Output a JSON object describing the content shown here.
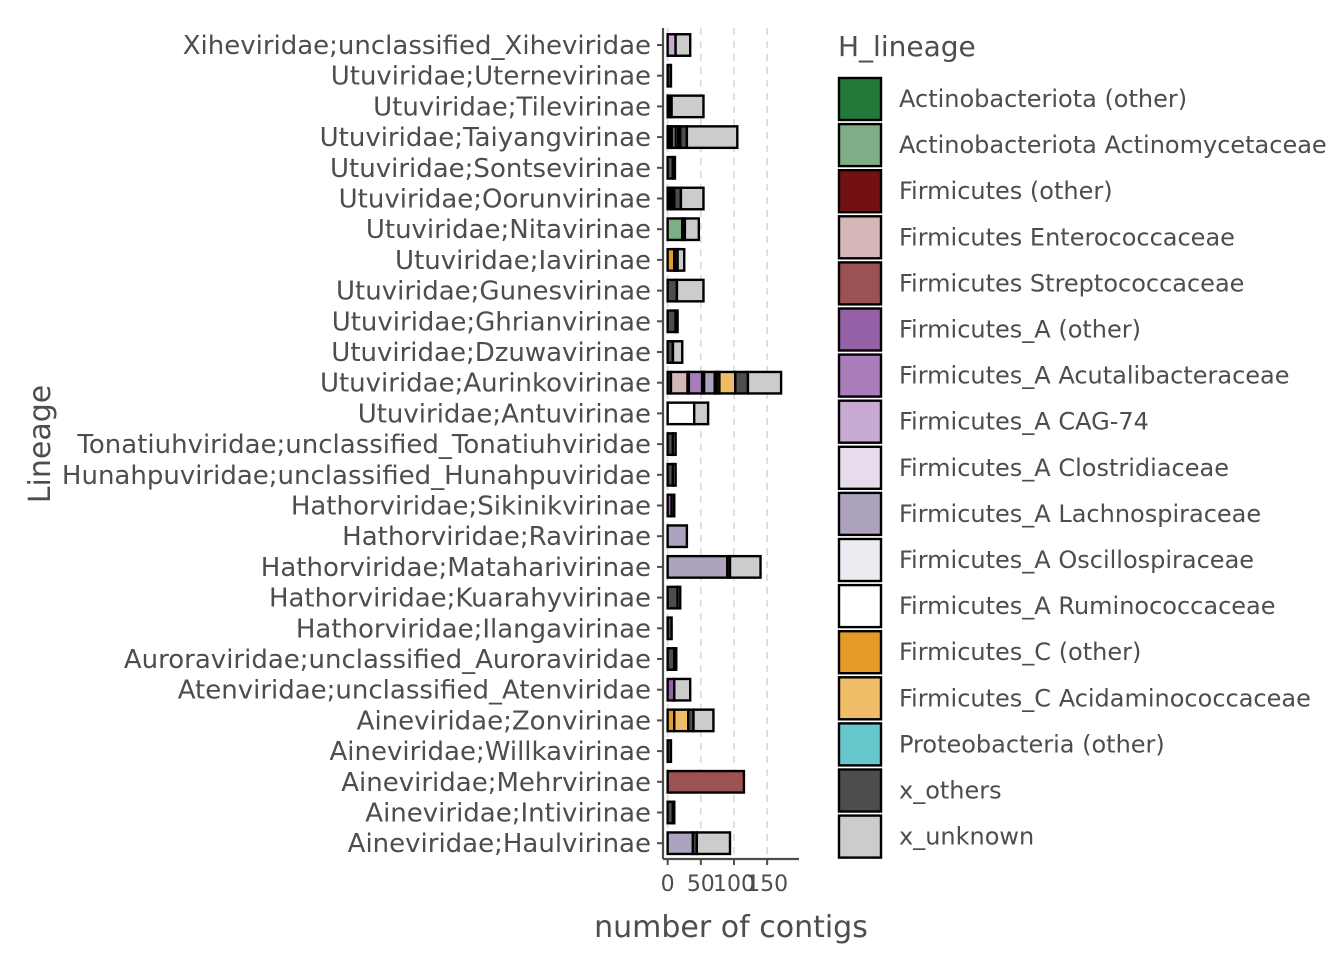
{
  "chart_data": {
    "type": "bar",
    "orientation": "horizontal",
    "stacked": true,
    "xlabel": "number of contigs",
    "ylabel": "Lineage",
    "xlim": [
      -7,
      198
    ],
    "xticks": [
      0,
      50,
      100,
      150
    ],
    "grid": "vertical dashed at x ticks",
    "legend_title": "H_lineage",
    "legend_position": "right",
    "categories": [
      "Xiheviridae;unclassified_Xiheviridae",
      "Utuviridae;Uternevirinae",
      "Utuviridae;Tilevirinae",
      "Utuviridae;Taiyangvirinae",
      "Utuviridae;Sontsevirinae",
      "Utuviridae;Oorunvirinae",
      "Utuviridae;Nitavirinae",
      "Utuviridae;Iavirinae",
      "Utuviridae;Gunesvirinae",
      "Utuviridae;Ghrianvirinae",
      "Utuviridae;Dzuwavirinae",
      "Utuviridae;Aurinkovirinae",
      "Utuviridae;Antuvirinae",
      "Tonatiuhviridae;unclassified_Tonatiuhviridae",
      "Hunahpuviridae;unclassified_Hunahpuviridae",
      "Hathorviridae;Sikinikvirinae",
      "Hathorviridae;Ravirinae",
      "Hathorviridae;Mataharivirinae",
      "Hathorviridae;Kuarahyvirinae",
      "Hathorviridae;Ilangavirinae",
      "Auroraviridae;unclassified_Auroraviridae",
      "Atenviridae;unclassified_Atenviridae",
      "Aineviridae;Zonvirinae",
      "Aineviridae;Willkavirinae",
      "Aineviridae;Mehrvirinae",
      "Aineviridae;Intivirinae",
      "Aineviridae;Haulvirinae"
    ],
    "series": [
      {
        "name": "Actinobacteriota (other)",
        "color": "#217a3a",
        "values": [
          0,
          0,
          0,
          0,
          0,
          0,
          0,
          0,
          0,
          0,
          0,
          0,
          0,
          0,
          0,
          0,
          0,
          0,
          0,
          0,
          0,
          0,
          0,
          0,
          0,
          0,
          0
        ]
      },
      {
        "name": "Actinobacteriota Actinomycetaceae",
        "color": "#7dae86",
        "values": [
          0,
          0,
          0,
          0,
          0,
          0,
          22,
          0,
          0,
          0,
          0,
          0,
          0,
          0,
          0,
          0,
          0,
          0,
          0,
          0,
          0,
          0,
          0,
          0,
          0,
          0,
          0
        ]
      },
      {
        "name": "Firmicutes (other)",
        "color": "#731014",
        "values": [
          0,
          0,
          0,
          1,
          0,
          3,
          0,
          0,
          0,
          0,
          0,
          5,
          0,
          0,
          0,
          0,
          0,
          0,
          0,
          0,
          0,
          0,
          0,
          0,
          0,
          0,
          0
        ]
      },
      {
        "name": "Firmicutes Enterococcaceae",
        "color": "#d6b7b7",
        "values": [
          0,
          0,
          0,
          0,
          0,
          0,
          0,
          0,
          0,
          0,
          0,
          25,
          0,
          0,
          0,
          0,
          0,
          0,
          0,
          0,
          0,
          0,
          0,
          0,
          0,
          0,
          0
        ]
      },
      {
        "name": "Firmicutes Streptococcaceae",
        "color": "#9c5252",
        "values": [
          0,
          0,
          0,
          0,
          0,
          0,
          0,
          0,
          0,
          0,
          0,
          0,
          0,
          0,
          0,
          0,
          0,
          0,
          0,
          0,
          0,
          0,
          0,
          0,
          115,
          0,
          0
        ]
      },
      {
        "name": "Firmicutes_A (other)",
        "color": "#9461a6",
        "values": [
          0,
          0,
          1,
          2,
          0,
          2,
          0,
          0,
          0,
          0,
          0,
          2,
          0,
          0,
          0,
          6,
          0,
          0,
          0,
          0,
          0,
          10,
          0,
          0,
          0,
          0,
          0
        ]
      },
      {
        "name": "Firmicutes_A Acutalibacteraceae",
        "color": "#a97dba",
        "values": [
          0,
          0,
          3,
          2,
          0,
          3,
          0,
          0,
          0,
          0,
          0,
          20,
          0,
          0,
          0,
          0,
          0,
          0,
          0,
          0,
          0,
          0,
          0,
          0,
          0,
          0,
          0
        ]
      },
      {
        "name": "Firmicutes_A CAG-74",
        "color": "#c8a9d1",
        "values": [
          12,
          0,
          0,
          2,
          0,
          0,
          0,
          0,
          0,
          0,
          0,
          0,
          0,
          0,
          0,
          0,
          0,
          0,
          0,
          0,
          0,
          0,
          0,
          0,
          0,
          0,
          0
        ]
      },
      {
        "name": "Firmicutes_A Clostridiaceae",
        "color": "#e7dceb",
        "values": [
          0,
          0,
          0,
          5,
          0,
          0,
          0,
          0,
          0,
          0,
          0,
          3,
          0,
          0,
          0,
          0,
          0,
          0,
          0,
          0,
          0,
          0,
          0,
          0,
          0,
          0,
          0
        ]
      },
      {
        "name": "Firmicutes_A Lachnospiraceae",
        "color": "#aea3be",
        "values": [
          0,
          0,
          0,
          4,
          0,
          0,
          0,
          0,
          0,
          0,
          0,
          16,
          0,
          0,
          0,
          0,
          29,
          90,
          0,
          0,
          0,
          0,
          0,
          0,
          0,
          0,
          38
        ]
      },
      {
        "name": "Firmicutes_A Oscillospiraceae",
        "color": "#ececf2",
        "values": [
          0,
          0,
          0,
          3,
          0,
          2,
          0,
          0,
          0,
          0,
          0,
          3,
          0,
          0,
          0,
          0,
          0,
          0,
          0,
          0,
          0,
          0,
          0,
          0,
          0,
          0,
          0
        ]
      },
      {
        "name": "Firmicutes_A Ruminococcaceae",
        "color": "#ffffff",
        "values": [
          0,
          0,
          0,
          0,
          0,
          0,
          0,
          0,
          0,
          0,
          0,
          0,
          40,
          0,
          0,
          0,
          0,
          0,
          0,
          0,
          0,
          0,
          0,
          0,
          0,
          0,
          0
        ]
      },
      {
        "name": "Firmicutes_C (other)",
        "color": "#e69a28",
        "values": [
          0,
          0,
          0,
          0,
          0,
          0,
          0,
          10,
          0,
          0,
          0,
          4,
          0,
          0,
          0,
          0,
          0,
          0,
          0,
          0,
          0,
          0,
          10,
          0,
          0,
          0,
          0
        ]
      },
      {
        "name": "Firmicutes_C Acidaminococcaceae",
        "color": "#efbc68",
        "values": [
          0,
          0,
          0,
          0,
          0,
          0,
          0,
          1,
          0,
          0,
          0,
          24,
          0,
          0,
          0,
          0,
          0,
          0,
          0,
          0,
          0,
          0,
          21,
          0,
          0,
          0,
          0
        ]
      },
      {
        "name": "Proteobacteria (other)",
        "color": "#66c8cc",
        "values": [
          0,
          0,
          0,
          0,
          0,
          0,
          0,
          0,
          0,
          0,
          0,
          0,
          0,
          0,
          0,
          0,
          0,
          0,
          0,
          0,
          0,
          0,
          0,
          0,
          0,
          0,
          0
        ]
      },
      {
        "name": "x_others",
        "color": "#4d4d4d",
        "values": [
          0,
          5,
          2,
          10,
          8,
          10,
          4,
          4,
          14,
          12,
          8,
          19,
          0,
          8,
          8,
          4,
          0,
          4,
          15,
          6,
          10,
          0,
          8,
          5,
          0,
          8,
          6
        ]
      },
      {
        "name": "x_unknown",
        "color": "#cccccc",
        "values": [
          22,
          0,
          48,
          76,
          3,
          34,
          21,
          10,
          40,
          3,
          14,
          50,
          21,
          4,
          4,
          0,
          0,
          46,
          4,
          0,
          3,
          24,
          30,
          0,
          0,
          2,
          50
        ]
      }
    ]
  }
}
